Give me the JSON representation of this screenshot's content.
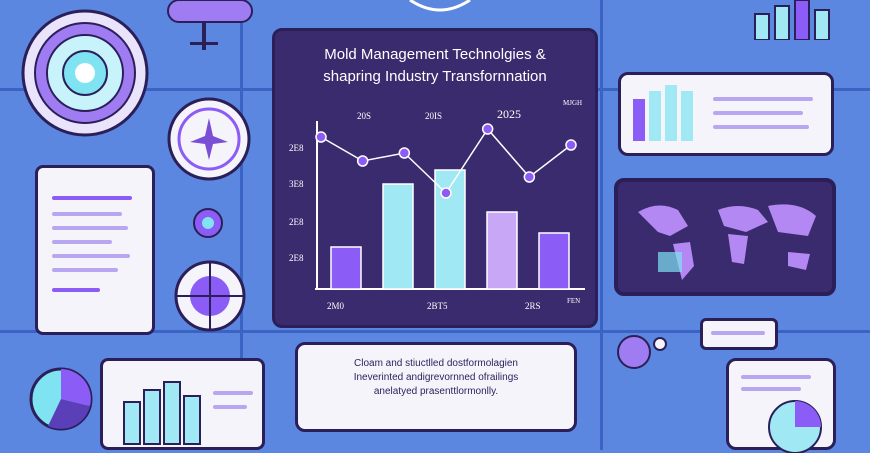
{
  "chart_panel": {
    "title_line1": "Mold Management Technolgies &",
    "title_line2": "shapring Industry Transfornnation",
    "top_labels": [
      "20S",
      "20IS",
      "2025"
    ],
    "top_unit": "MJGH",
    "y_labels": [
      "2E8",
      "3E8",
      "2E8",
      "2E8"
    ],
    "x_labels": [
      "2M0",
      "2BT5",
      "2RS"
    ],
    "x_unit": "FEN"
  },
  "chart_data": {
    "type": "bar",
    "categories": [
      "2M0",
      "",
      "2BT5",
      "",
      "2RS"
    ],
    "values": [
      30,
      75,
      85,
      55,
      40
    ],
    "line_values": [
      95,
      80,
      85,
      60,
      100,
      70,
      90
    ]
  },
  "caption": {
    "line1": "Cloam and stiuctlled dostformolagien",
    "line2": "Ineverinted andigrevornned ofrailings",
    "line3": "anelatyed prasenttlormonlly."
  },
  "colors": {
    "background": "#5b87e0",
    "panel_dark": "#3a2a6e",
    "accent_purple": "#8b5cf6",
    "accent_cyan": "#7fe3f2"
  }
}
